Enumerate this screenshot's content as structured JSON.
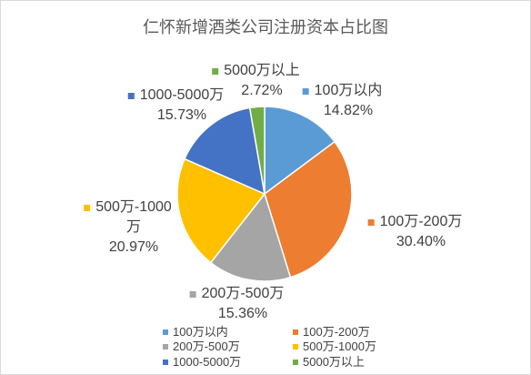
{
  "chart_data": {
    "type": "pie",
    "title": "仁怀新增酒类公司注册资本占比图",
    "categories": [
      "100万以内",
      "100万-200万",
      "200万-500万",
      "500万-1000万",
      "1000-5000万",
      "5000万以上"
    ],
    "values": [
      14.82,
      30.4,
      15.36,
      20.97,
      15.73,
      2.72
    ],
    "value_labels": [
      "14.82%",
      "30.40%",
      "15.36%",
      "20.97%",
      "15.73%",
      "2.72%"
    ],
    "colors": [
      "#5B9BD5",
      "#ED7D31",
      "#A5A5A5",
      "#FFC000",
      "#4472C4",
      "#70AD47"
    ],
    "start_position": "top",
    "direction": "clockwise",
    "legend_position": "bottom"
  }
}
